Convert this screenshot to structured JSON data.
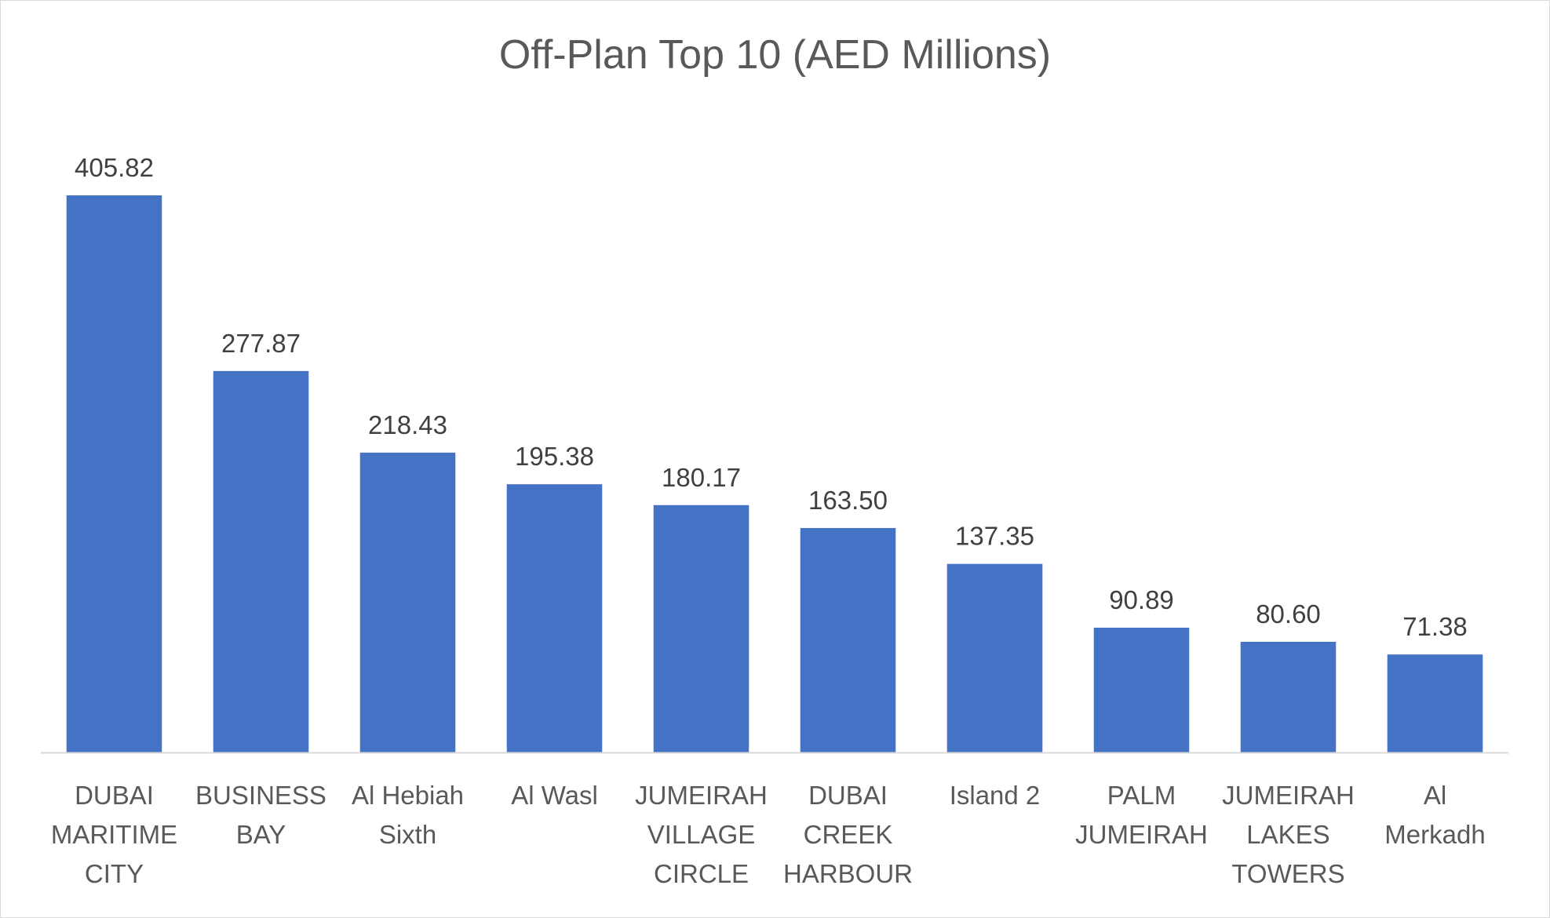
{
  "chart_data": {
    "type": "bar",
    "title": "Off-Plan Top 10 (AED Millions)",
    "xlabel": "",
    "ylabel": "",
    "categories": [
      [
        "DUBAI",
        "MARITIME",
        "CITY"
      ],
      [
        "BUSINESS",
        "BAY"
      ],
      [
        "Al Hebiah",
        "Sixth"
      ],
      [
        "Al Wasl"
      ],
      [
        "JUMEIRAH",
        "VILLAGE",
        "CIRCLE"
      ],
      [
        "DUBAI",
        "CREEK",
        "HARBOUR"
      ],
      [
        "Island 2"
      ],
      [
        "PALM",
        "JUMEIRAH"
      ],
      [
        "JUMEIRAH",
        "LAKES",
        "TOWERS"
      ],
      [
        "Al",
        "Merkadh"
      ]
    ],
    "values": [
      405.82,
      277.87,
      218.43,
      195.38,
      180.17,
      163.5,
      137.35,
      90.89,
      80.6,
      71.38
    ],
    "value_labels": [
      "405.82",
      "277.87",
      "218.43",
      "195.38",
      "180.17",
      "163.50",
      "137.35",
      "90.89",
      "80.60",
      "71.38"
    ],
    "ylim": [
      0,
      405.82
    ],
    "grid": false,
    "legend": "none",
    "bar_color": "#4472C4",
    "axis_color": "#d9d9d9"
  }
}
